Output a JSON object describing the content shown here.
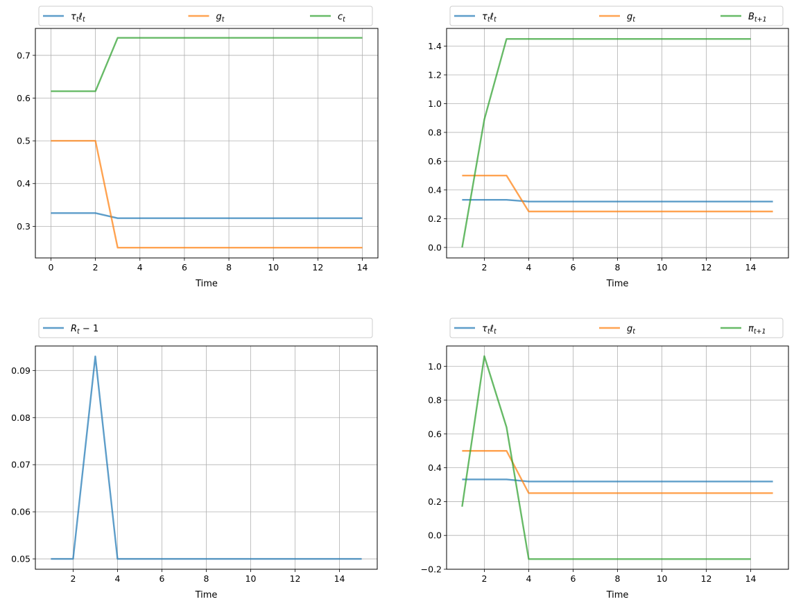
{
  "colors": {
    "blue": "#1f77b4",
    "orange": "#ff7f0e",
    "green": "#2ca02c"
  },
  "chart_data": [
    {
      "type": "line",
      "xlabel": "Time",
      "xlim": [
        -0.7,
        14.7
      ],
      "ylim": [
        0.226,
        0.763
      ],
      "xticks": [
        0,
        2,
        4,
        6,
        8,
        10,
        12,
        14
      ],
      "yticks": [
        0.3,
        0.4,
        0.5,
        0.6,
        0.7
      ],
      "ytick_labels": [
        "0.3",
        "0.4",
        "0.5",
        "0.6",
        "0.7"
      ],
      "series": [
        {
          "name": "τ_t ℓ_t",
          "base": "τ",
          "mid": "t",
          "tail": "ℓ",
          "sub": "t",
          "color": "#1f77b4",
          "x": [
            0,
            1,
            2,
            3,
            4,
            5,
            6,
            7,
            8,
            9,
            10,
            11,
            12,
            13,
            14
          ],
          "values": [
            0.331,
            0.331,
            0.331,
            0.319,
            0.319,
            0.319,
            0.319,
            0.319,
            0.319,
            0.319,
            0.319,
            0.319,
            0.319,
            0.319,
            0.319
          ]
        },
        {
          "name": "g_t",
          "base": "g",
          "mid": "",
          "tail": "",
          "sub": "t",
          "color": "#ff7f0e",
          "x": [
            0,
            1,
            2,
            3,
            4,
            5,
            6,
            7,
            8,
            9,
            10,
            11,
            12,
            13,
            14
          ],
          "values": [
            0.5,
            0.5,
            0.5,
            0.25,
            0.25,
            0.25,
            0.25,
            0.25,
            0.25,
            0.25,
            0.25,
            0.25,
            0.25,
            0.25,
            0.25
          ]
        },
        {
          "name": "c_t",
          "base": "c",
          "mid": "",
          "tail": "",
          "sub": "t",
          "color": "#2ca02c",
          "x": [
            0,
            1,
            2,
            3,
            4,
            5,
            6,
            7,
            8,
            9,
            10,
            11,
            12,
            13,
            14
          ],
          "values": [
            0.616,
            0.616,
            0.616,
            0.741,
            0.741,
            0.741,
            0.741,
            0.741,
            0.741,
            0.741,
            0.741,
            0.741,
            0.741,
            0.741,
            0.741
          ]
        }
      ]
    },
    {
      "type": "line",
      "xlabel": "Time",
      "xlim": [
        0.3,
        15.7
      ],
      "ylim": [
        -0.073,
        1.523
      ],
      "xticks": [
        2,
        4,
        6,
        8,
        10,
        12,
        14
      ],
      "yticks": [
        0.0,
        0.2,
        0.4,
        0.6,
        0.8,
        1.0,
        1.2,
        1.4
      ],
      "ytick_labels": [
        "0.0",
        "0.2",
        "0.4",
        "0.6",
        "0.8",
        "1.0",
        "1.2",
        "1.4"
      ],
      "series": [
        {
          "name": "τ_t ℓ_t",
          "base": "τ",
          "mid": "t",
          "tail": "ℓ",
          "sub": "t",
          "color": "#1f77b4",
          "x": [
            1,
            2,
            3,
            4,
            5,
            6,
            7,
            8,
            9,
            10,
            11,
            12,
            13,
            14,
            15
          ],
          "values": [
            0.331,
            0.331,
            0.331,
            0.319,
            0.319,
            0.319,
            0.319,
            0.319,
            0.319,
            0.319,
            0.319,
            0.319,
            0.319,
            0.319,
            0.319
          ]
        },
        {
          "name": "g_t",
          "base": "g",
          "mid": "",
          "tail": "",
          "sub": "t",
          "color": "#ff7f0e",
          "x": [
            1,
            2,
            3,
            4,
            5,
            6,
            7,
            8,
            9,
            10,
            11,
            12,
            13,
            14,
            15
          ],
          "values": [
            0.5,
            0.5,
            0.5,
            0.25,
            0.25,
            0.25,
            0.25,
            0.25,
            0.25,
            0.25,
            0.25,
            0.25,
            0.25,
            0.25,
            0.25
          ]
        },
        {
          "name": "B_{t+1}",
          "base": "B",
          "mid": "",
          "tail": "",
          "sub": "t+1",
          "color": "#2ca02c",
          "x": [
            1,
            2,
            3,
            4,
            5,
            6,
            7,
            8,
            9,
            10,
            11,
            12,
            13,
            14
          ],
          "values": [
            0.0,
            0.89,
            1.45,
            1.45,
            1.45,
            1.45,
            1.45,
            1.45,
            1.45,
            1.45,
            1.45,
            1.45,
            1.45,
            1.45
          ]
        }
      ]
    },
    {
      "type": "line",
      "xlabel": "Time",
      "xlim": [
        0.3,
        15.7
      ],
      "ylim": [
        0.0478,
        0.0952
      ],
      "xticks": [
        2,
        4,
        6,
        8,
        10,
        12,
        14
      ],
      "yticks": [
        0.05,
        0.06,
        0.07,
        0.08,
        0.09
      ],
      "ytick_labels": [
        "0.05",
        "0.06",
        "0.07",
        "0.08",
        "0.09"
      ],
      "series": [
        {
          "name": "R_t − 1",
          "base": "R",
          "mid": "",
          "tail": " − 1",
          "sub": "t",
          "color": "#1f77b4",
          "x": [
            1,
            2,
            3,
            4,
            5,
            6,
            7,
            8,
            9,
            10,
            11,
            12,
            13,
            14,
            15
          ],
          "values": [
            0.05,
            0.05,
            0.093,
            0.05,
            0.05,
            0.05,
            0.05,
            0.05,
            0.05,
            0.05,
            0.05,
            0.05,
            0.05,
            0.05,
            0.05
          ]
        }
      ]
    },
    {
      "type": "line",
      "xlabel": "Time",
      "xlim": [
        0.3,
        15.7
      ],
      "ylim": [
        -0.2,
        1.12
      ],
      "xticks": [
        2,
        4,
        6,
        8,
        10,
        12,
        14
      ],
      "yticks": [
        -0.2,
        0.0,
        0.2,
        0.4,
        0.6,
        0.8,
        1.0
      ],
      "ytick_labels": [
        "−0.2",
        "0.0",
        "0.2",
        "0.4",
        "0.6",
        "0.8",
        "1.0"
      ],
      "series": [
        {
          "name": "τ_t ℓ_t",
          "base": "τ",
          "mid": "t",
          "tail": "ℓ",
          "sub": "t",
          "color": "#1f77b4",
          "x": [
            1,
            2,
            3,
            4,
            5,
            6,
            7,
            8,
            9,
            10,
            11,
            12,
            13,
            14,
            15
          ],
          "values": [
            0.331,
            0.331,
            0.331,
            0.319,
            0.319,
            0.319,
            0.319,
            0.319,
            0.319,
            0.319,
            0.319,
            0.319,
            0.319,
            0.319,
            0.319
          ]
        },
        {
          "name": "g_t",
          "base": "g",
          "mid": "",
          "tail": "",
          "sub": "t",
          "color": "#ff7f0e",
          "x": [
            1,
            2,
            3,
            4,
            5,
            6,
            7,
            8,
            9,
            10,
            11,
            12,
            13,
            14,
            15
          ],
          "values": [
            0.5,
            0.5,
            0.5,
            0.25,
            0.25,
            0.25,
            0.25,
            0.25,
            0.25,
            0.25,
            0.25,
            0.25,
            0.25,
            0.25,
            0.25
          ]
        },
        {
          "name": "π_{t+1}",
          "base": "π",
          "mid": "",
          "tail": "",
          "sub": "t+1",
          "color": "#2ca02c",
          "x": [
            1,
            2,
            3,
            4,
            5,
            6,
            7,
            8,
            9,
            10,
            11,
            12,
            13,
            14
          ],
          "values": [
            0.17,
            1.06,
            0.64,
            -0.14,
            -0.14,
            -0.14,
            -0.14,
            -0.14,
            -0.14,
            -0.14,
            -0.14,
            -0.14,
            -0.14,
            -0.14
          ]
        }
      ]
    }
  ]
}
